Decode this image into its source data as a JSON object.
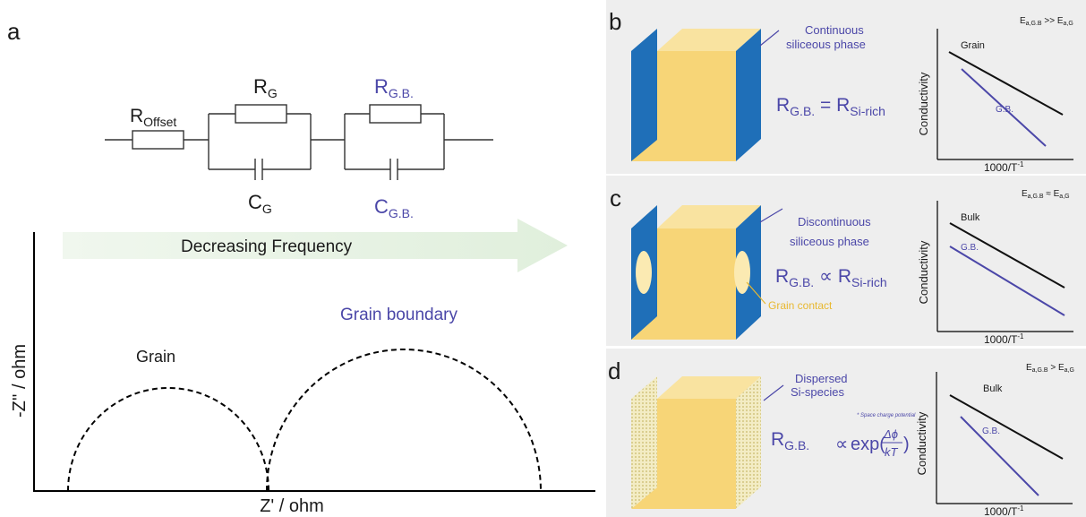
{
  "panel_a": {
    "letter": "a",
    "r_offset": {
      "main": "R",
      "sub": "Offset"
    },
    "r_grain": {
      "main": "R",
      "sub": "G"
    },
    "c_grain": {
      "main": "C",
      "sub": "G"
    },
    "r_gb": {
      "main": "R",
      "sub": "G.B."
    },
    "c_gb": {
      "main": "C",
      "sub": "G.B."
    },
    "arrow_label": "Decreasing Frequency",
    "grain_label": "Grain",
    "gb_label": "Grain boundary",
    "y_axis": "-Z'' / ohm",
    "x_axis": "Z' / ohm"
  },
  "panel_b": {
    "letter": "b",
    "callout_line1": "Continuous",
    "callout_line2": "siliceous phase",
    "eq_left_main": "R",
    "eq_left_sub": "G.B.",
    "eq_op": " = ",
    "eq_right_main": "R",
    "eq_right_sub": "Si-rich",
    "ea_main": "E",
    "ea_sub1": "a,G.B",
    "ea_rel": " >> ",
    "ea_main2": "E",
    "ea_sub2": "a,G",
    "plot": {
      "ylabel": "Conductivity",
      "xlabel_main": "1000/T",
      "xlabel_sup": "-1",
      "line1": "Grain",
      "line2": "G.B."
    }
  },
  "panel_c": {
    "letter": "c",
    "callout_line1": "Discontinuous",
    "callout_line2": "siliceous phase",
    "contact_label": "Grain contact",
    "eq_left_main": "R",
    "eq_left_sub": "G.B.",
    "eq_op": " ∝ ",
    "eq_right_main": "R",
    "eq_right_sub": "Si-rich",
    "ea_main": "E",
    "ea_sub1": "a,G.B",
    "ea_rel": " ≈ ",
    "ea_main2": "E",
    "ea_sub2": "a,G",
    "plot": {
      "ylabel": "Conductivity",
      "xlabel_main": "1000/T",
      "xlabel_sup": "-1",
      "line1": "Bulk",
      "line2": "G.B."
    }
  },
  "panel_d": {
    "letter": "d",
    "callout_line1": "Dispersed",
    "callout_line2": "Si-species",
    "note": "* Space charge potential",
    "eq_left_main": "R",
    "eq_left_sub": "G.B.",
    "eq_prop": "∝",
    "eq_exp": "exp(",
    "eq_num": "Δϕ",
    "eq_den": "kT",
    "eq_close": ")",
    "ea_main": "E",
    "ea_sub1": "a,G.B",
    "ea_rel": " > ",
    "ea_main2": "E",
    "ea_sub2": "a,G",
    "plot": {
      "ylabel": "Conductivity",
      "xlabel_main": "1000/T",
      "xlabel_sup": "-1",
      "line1": "Bulk",
      "line2": "G.B."
    }
  },
  "colors": {
    "purple": "#4b47a8",
    "blue_face": "#1f6fb8",
    "yellow_face": "#f7d577",
    "panel_bg": "#eeeeee",
    "arrow": "#e6f2e3"
  }
}
